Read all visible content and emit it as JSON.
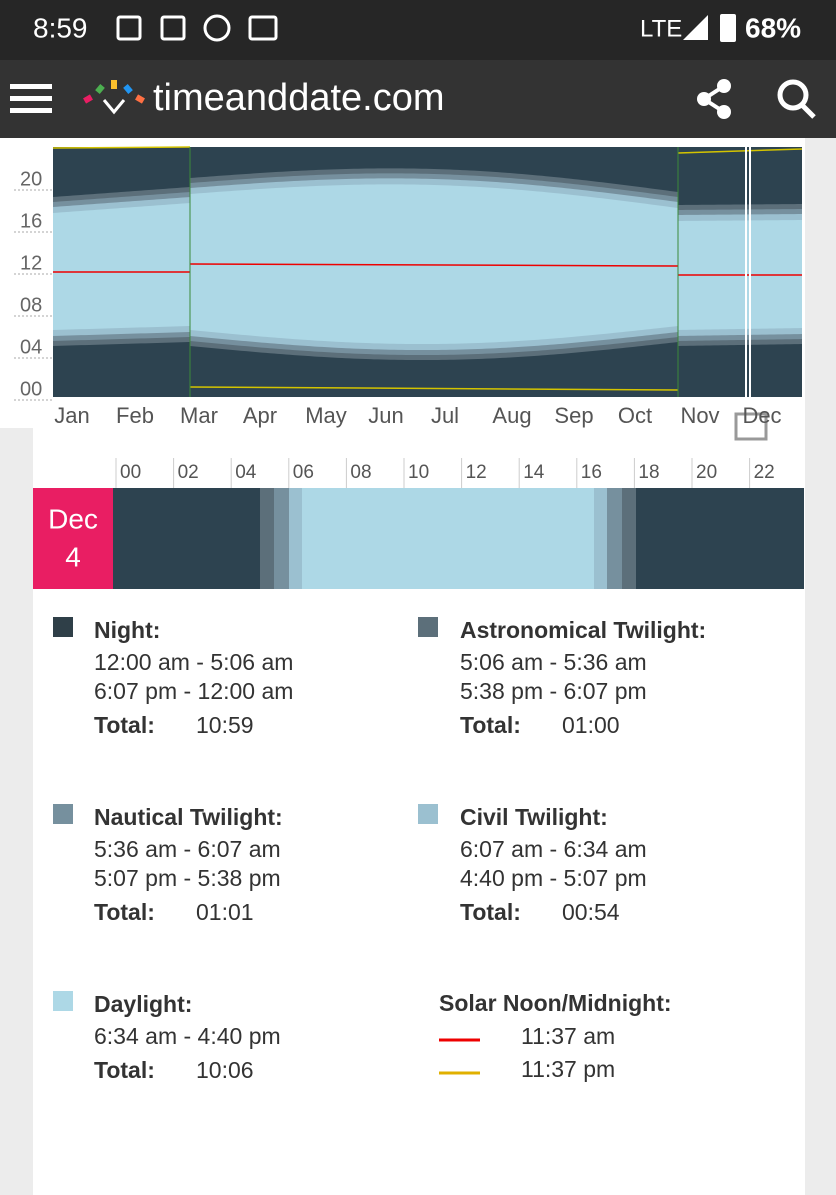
{
  "status_bar": {
    "time": "8:59",
    "network": "LTE",
    "battery": "68%"
  },
  "header": {
    "site": "timeanddate.com"
  },
  "year_chart": {
    "y_labels": [
      "20",
      "16",
      "12",
      "08",
      "04",
      "00"
    ],
    "months": [
      "Jan",
      "Feb",
      "Mar",
      "Apr",
      "May",
      "Jun",
      "Jul",
      "Aug",
      "Sep",
      "Oct",
      "Nov",
      "Dec"
    ]
  },
  "day_bar": {
    "month": "Dec",
    "day": "4",
    "hours": [
      "00",
      "02",
      "04",
      "06",
      "08",
      "10",
      "12",
      "14",
      "16",
      "18",
      "20",
      "22"
    ]
  },
  "legend": [
    {
      "title": "Night:",
      "ranges": [
        "12:00 am - 5:06 am",
        "6:07 pm - 12:00 am"
      ],
      "total_label": "Total:",
      "total": "10:59"
    },
    {
      "title": "Astronomical Twilight:",
      "ranges": [
        "5:06 am - 5:36 am",
        "5:38 pm - 6:07 pm"
      ],
      "total_label": "Total:",
      "total": "01:00"
    },
    {
      "title": "Nautical Twilight:",
      "ranges": [
        "5:36 am - 6:07 am",
        "5:07 pm - 5:38 pm"
      ],
      "total_label": "Total:",
      "total": "01:01"
    },
    {
      "title": "Civil Twilight:",
      "ranges": [
        "6:07 am - 6:34 am",
        "4:40 pm - 5:07 pm"
      ],
      "total_label": "Total:",
      "total": "00:54"
    },
    {
      "title": "Daylight:",
      "ranges": [
        "6:34 am - 4:40 pm"
      ],
      "total_label": "Total:",
      "total": "10:06"
    }
  ],
  "solar": {
    "title": "Solar Noon/Midnight:",
    "noon": "11:37 am",
    "midnight": "11:37 pm"
  }
}
